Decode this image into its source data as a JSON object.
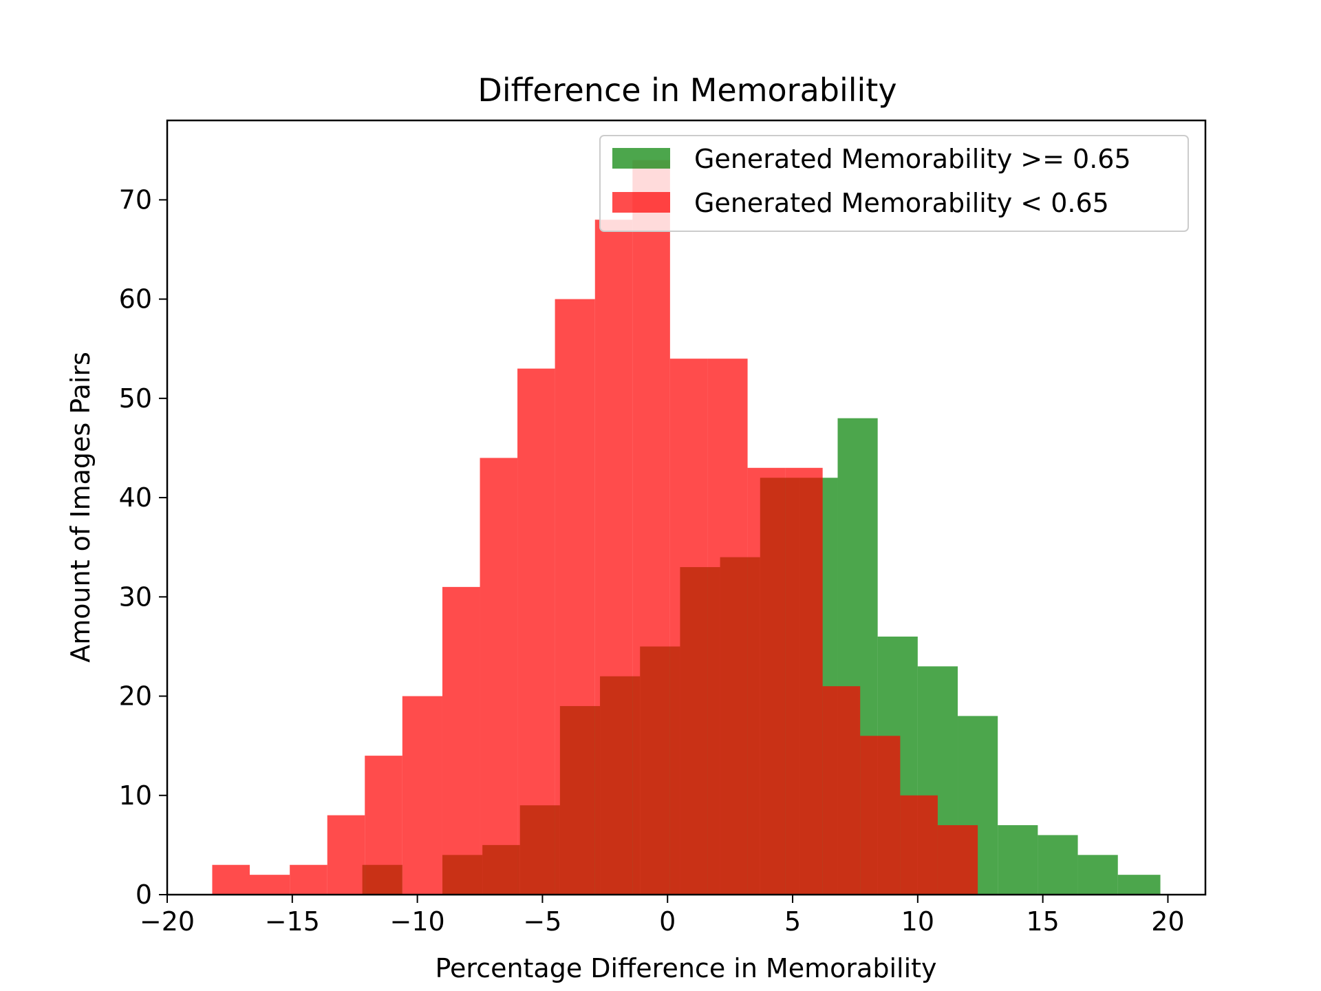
{
  "chart_data": {
    "type": "bar",
    "title": "Difference in Memorability",
    "xlabel": "Percentage Difference in Memorability",
    "ylabel": "Amount of Images Pairs",
    "xlim": [
      -20,
      21.5
    ],
    "ylim": [
      0,
      78
    ],
    "xticks": [
      -20,
      -15,
      -10,
      -5,
      0,
      5,
      10,
      15,
      20
    ],
    "xtick_labels": [
      "−20",
      "−15",
      "−10",
      "−5",
      "0",
      "5",
      "10",
      "15",
      "20"
    ],
    "yticks": [
      0,
      10,
      20,
      30,
      40,
      50,
      60,
      70
    ],
    "ytick_labels": [
      "0",
      "10",
      "20",
      "30",
      "40",
      "50",
      "60",
      "70"
    ],
    "grid": false,
    "legend_position": "top-right",
    "series": [
      {
        "name": "Generated Memorability >= 0.65",
        "color": "#008000",
        "alpha": 0.7,
        "bin_edges": [
          -12.2,
          -10.6,
          -9.0,
          -7.4,
          -5.9,
          -4.3,
          -2.7,
          -1.1,
          0.5,
          2.1,
          3.7,
          5.3,
          6.8,
          8.4,
          10.0,
          11.6,
          13.2,
          14.8,
          16.4,
          18.0,
          19.7
        ],
        "counts": [
          3,
          0,
          4,
          5,
          9,
          19,
          22,
          25,
          33,
          34,
          42,
          42,
          48,
          26,
          23,
          18,
          7,
          6,
          4,
          2
        ]
      },
      {
        "name": "Generated Memorability < 0.65",
        "color": "#ff0000",
        "alpha": 0.7,
        "bin_edges": [
          -18.2,
          -16.7,
          -15.1,
          -13.6,
          -12.1,
          -10.6,
          -9.0,
          -7.5,
          -6.0,
          -4.5,
          -2.9,
          -1.4,
          0.1,
          1.6,
          3.2,
          4.7,
          6.2,
          7.7,
          9.3,
          10.8,
          12.4
        ],
        "counts": [
          3,
          2,
          3,
          8,
          14,
          20,
          31,
          44,
          53,
          60,
          68,
          74,
          54,
          54,
          43,
          43,
          21,
          16,
          10,
          7
        ]
      }
    ]
  }
}
